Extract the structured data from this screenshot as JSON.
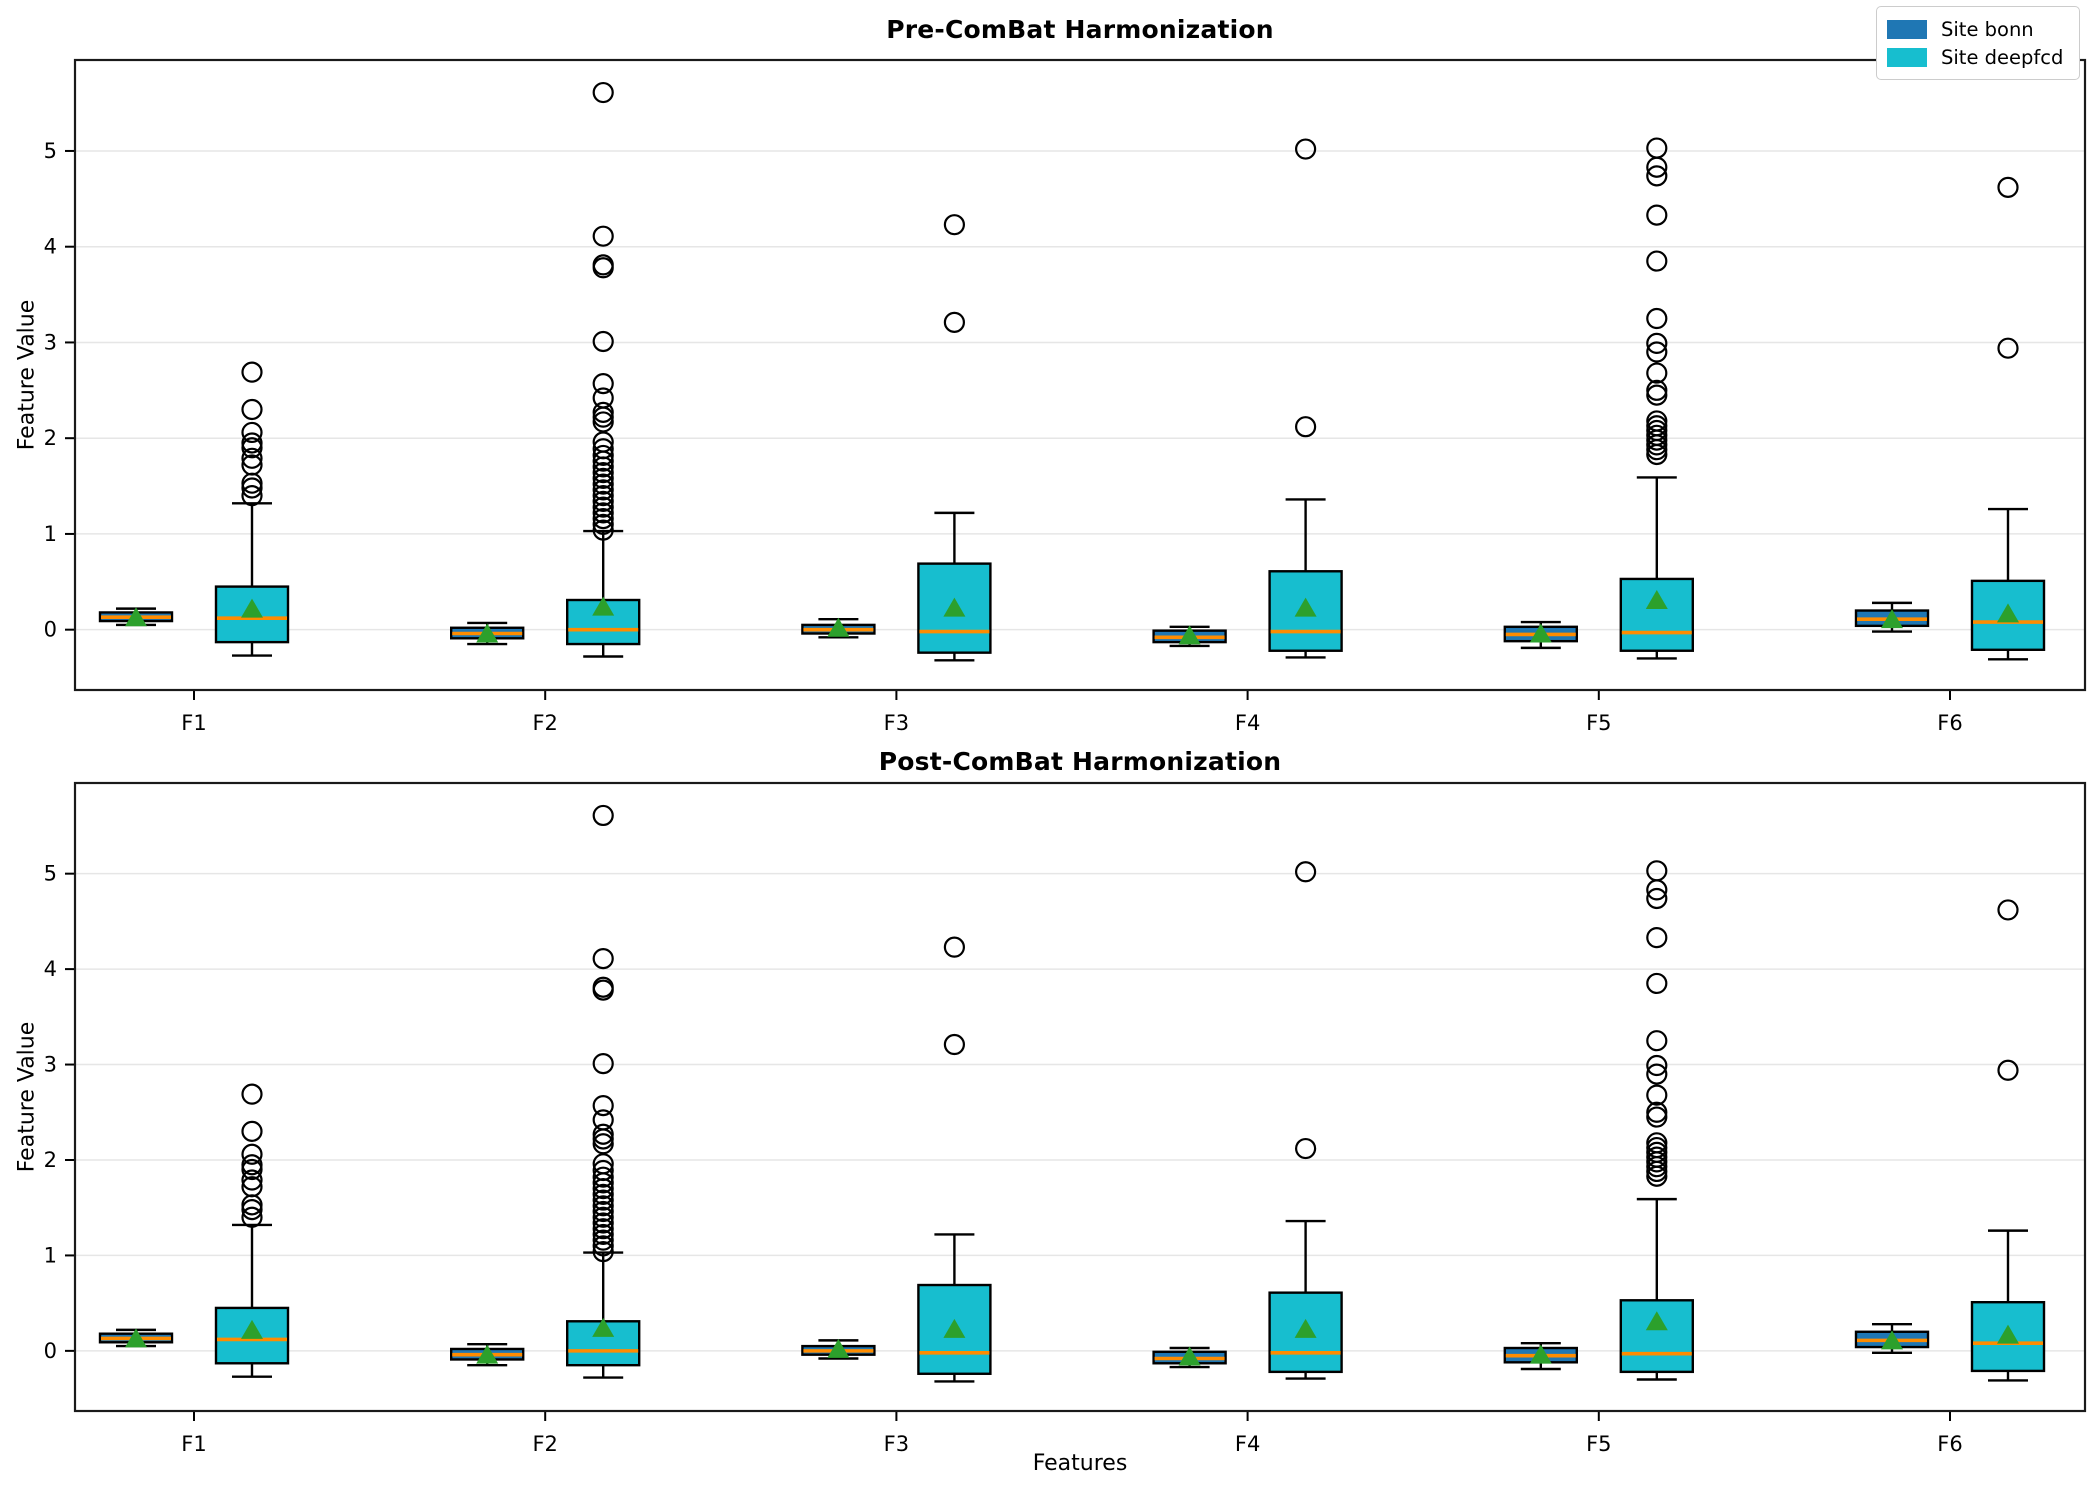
{
  "figure": {
    "xlabel": "Features",
    "ylabel": "Feature Value"
  },
  "legend": [
    {
      "label": "Site bonn",
      "color": "#1f77b4"
    },
    {
      "label": "Site deepfcd",
      "color": "#17becf"
    }
  ],
  "style": {
    "median_color": "#ff8c00",
    "mean_marker_color": "#2ca02c",
    "box_edge_color": "#000000",
    "grid_color": "#e6e6e6"
  },
  "chart_data": [
    {
      "type": "box",
      "title": "Pre-ComBat Harmonization",
      "xlabel": "",
      "ylabel": "Feature Value",
      "categories": [
        "F1",
        "F2",
        "F3",
        "F4",
        "F5",
        "F6"
      ],
      "ylim": [
        -0.63,
        5.95
      ],
      "yticks": [
        0,
        1,
        2,
        3,
        4,
        5
      ],
      "grid": true,
      "legend_position": "upper right",
      "mean_marker": "triangle-up",
      "series": [
        {
          "name": "Site bonn",
          "color": "#1f77b4",
          "boxes": [
            {
              "whislo": 0.05,
              "q1": 0.09,
              "med": 0.13,
              "q3": 0.18,
              "whishi": 0.22,
              "mean": 0.12,
              "fliers": []
            },
            {
              "whislo": -0.15,
              "q1": -0.09,
              "med": -0.04,
              "q3": 0.02,
              "whishi": 0.07,
              "mean": -0.05,
              "fliers": []
            },
            {
              "whislo": -0.08,
              "q1": -0.04,
              "med": 0.0,
              "q3": 0.05,
              "whishi": 0.11,
              "mean": 0.01,
              "fliers": []
            },
            {
              "whislo": -0.17,
              "q1": -0.13,
              "med": -0.08,
              "q3": -0.01,
              "whishi": 0.03,
              "mean": -0.07,
              "fliers": []
            },
            {
              "whislo": -0.19,
              "q1": -0.12,
              "med": -0.05,
              "q3": 0.03,
              "whishi": 0.08,
              "mean": -0.05,
              "fliers": []
            },
            {
              "whislo": -0.02,
              "q1": 0.04,
              "med": 0.11,
              "q3": 0.2,
              "whishi": 0.28,
              "mean": 0.1,
              "fliers": []
            }
          ]
        },
        {
          "name": "Site deepfcd",
          "color": "#17becf",
          "boxes": [
            {
              "whislo": -0.27,
              "q1": -0.13,
              "med": 0.12,
              "q3": 0.45,
              "whishi": 1.32,
              "mean": 0.21,
              "fliers": [
                1.4,
                1.48,
                1.53,
                1.72,
                1.79,
                1.9,
                1.95,
                2.06,
                2.3,
                2.69
              ]
            },
            {
              "whislo": -0.28,
              "q1": -0.15,
              "med": 0.0,
              "q3": 0.31,
              "whishi": 1.03,
              "mean": 0.23,
              "fliers": [
                1.04,
                1.1,
                1.16,
                1.22,
                1.28,
                1.34,
                1.4,
                1.46,
                1.52,
                1.58,
                1.64,
                1.7,
                1.76,
                1.82,
                1.89,
                1.96,
                2.17,
                2.22,
                2.27,
                2.42,
                2.57,
                3.01,
                3.78,
                3.81,
                4.11,
                5.61
              ]
            },
            {
              "whislo": -0.32,
              "q1": -0.24,
              "med": -0.02,
              "q3": 0.69,
              "whishi": 1.22,
              "mean": 0.22,
              "fliers": [
                3.21,
                4.23
              ]
            },
            {
              "whislo": -0.29,
              "q1": -0.22,
              "med": -0.02,
              "q3": 0.61,
              "whishi": 1.36,
              "mean": 0.22,
              "fliers": [
                2.12,
                5.02
              ]
            },
            {
              "whislo": -0.3,
              "q1": -0.22,
              "med": -0.03,
              "q3": 0.53,
              "whishi": 1.59,
              "mean": 0.3,
              "fliers": [
                1.83,
                1.88,
                1.93,
                1.98,
                2.03,
                2.08,
                2.13,
                2.18,
                2.45,
                2.5,
                2.68,
                2.9,
                2.99,
                3.25,
                3.85,
                4.33,
                4.74,
                4.83,
                5.03
              ]
            },
            {
              "whislo": -0.31,
              "q1": -0.21,
              "med": 0.08,
              "q3": 0.51,
              "whishi": 1.26,
              "mean": 0.16,
              "fliers": [
                2.94,
                4.62
              ]
            }
          ]
        }
      ]
    },
    {
      "type": "box",
      "title": "Post-ComBat Harmonization",
      "xlabel": "Features",
      "ylabel": "Feature Value",
      "categories": [
        "F1",
        "F2",
        "F3",
        "F4",
        "F5",
        "F6"
      ],
      "ylim": [
        -0.63,
        5.95
      ],
      "yticks": [
        0,
        1,
        2,
        3,
        4,
        5
      ],
      "grid": true,
      "legend_position": "none",
      "mean_marker": "triangle-up",
      "series": [
        {
          "name": "Site bonn",
          "color": "#1f77b4",
          "boxes": [
            {
              "whislo": 0.05,
              "q1": 0.09,
              "med": 0.13,
              "q3": 0.18,
              "whishi": 0.22,
              "mean": 0.12,
              "fliers": []
            },
            {
              "whislo": -0.15,
              "q1": -0.09,
              "med": -0.04,
              "q3": 0.02,
              "whishi": 0.07,
              "mean": -0.05,
              "fliers": []
            },
            {
              "whislo": -0.08,
              "q1": -0.04,
              "med": 0.0,
              "q3": 0.05,
              "whishi": 0.11,
              "mean": 0.01,
              "fliers": []
            },
            {
              "whislo": -0.17,
              "q1": -0.13,
              "med": -0.08,
              "q3": -0.01,
              "whishi": 0.03,
              "mean": -0.07,
              "fliers": []
            },
            {
              "whislo": -0.19,
              "q1": -0.12,
              "med": -0.05,
              "q3": 0.03,
              "whishi": 0.08,
              "mean": -0.05,
              "fliers": []
            },
            {
              "whislo": -0.02,
              "q1": 0.04,
              "med": 0.11,
              "q3": 0.2,
              "whishi": 0.28,
              "mean": 0.1,
              "fliers": []
            }
          ]
        },
        {
          "name": "Site deepfcd",
          "color": "#17becf",
          "boxes": [
            {
              "whislo": -0.27,
              "q1": -0.13,
              "med": 0.12,
              "q3": 0.45,
              "whishi": 1.32,
              "mean": 0.21,
              "fliers": [
                1.4,
                1.48,
                1.53,
                1.72,
                1.79,
                1.9,
                1.95,
                2.06,
                2.3,
                2.69
              ]
            },
            {
              "whislo": -0.28,
              "q1": -0.15,
              "med": 0.0,
              "q3": 0.31,
              "whishi": 1.03,
              "mean": 0.23,
              "fliers": [
                1.04,
                1.1,
                1.16,
                1.22,
                1.28,
                1.34,
                1.4,
                1.46,
                1.52,
                1.58,
                1.64,
                1.7,
                1.76,
                1.82,
                1.89,
                1.96,
                2.17,
                2.22,
                2.27,
                2.42,
                2.57,
                3.01,
                3.78,
                3.81,
                4.11,
                5.61
              ]
            },
            {
              "whislo": -0.32,
              "q1": -0.24,
              "med": -0.02,
              "q3": 0.69,
              "whishi": 1.22,
              "mean": 0.22,
              "fliers": [
                3.21,
                4.23
              ]
            },
            {
              "whislo": -0.29,
              "q1": -0.22,
              "med": -0.02,
              "q3": 0.61,
              "whishi": 1.36,
              "mean": 0.22,
              "fliers": [
                2.12,
                5.02
              ]
            },
            {
              "whislo": -0.3,
              "q1": -0.22,
              "med": -0.03,
              "q3": 0.53,
              "whishi": 1.59,
              "mean": 0.3,
              "fliers": [
                1.83,
                1.88,
                1.93,
                1.98,
                2.03,
                2.08,
                2.13,
                2.18,
                2.45,
                2.5,
                2.68,
                2.9,
                2.99,
                3.25,
                3.85,
                4.33,
                4.74,
                4.83,
                5.03
              ]
            },
            {
              "whislo": -0.31,
              "q1": -0.21,
              "med": 0.08,
              "q3": 0.51,
              "whishi": 1.26,
              "mean": 0.16,
              "fliers": [
                2.94,
                4.62
              ]
            }
          ]
        }
      ]
    }
  ]
}
